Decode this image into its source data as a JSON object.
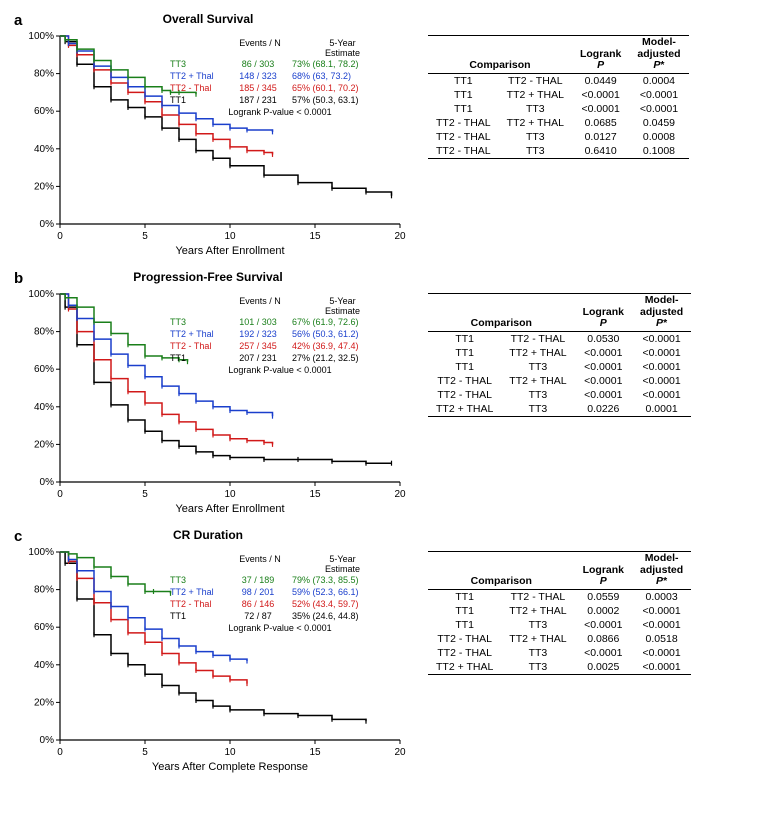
{
  "series_order": [
    "tt3",
    "tt2p",
    "tt2m",
    "tt1"
  ],
  "series": {
    "tt3": {
      "name": "TT3",
      "color": "#1a7f1a"
    },
    "tt2p": {
      "name": "TT2 + Thal",
      "color": "#1a3fcc"
    },
    "tt2m": {
      "name": "TT2 - Thal",
      "color": "#d11919"
    },
    "tt1": {
      "name": "TT1",
      "color": "#000000"
    }
  },
  "axis": {
    "x_ticks": [
      0,
      5,
      10,
      15,
      20
    ],
    "y_ticks": [
      0,
      20,
      40,
      60,
      80,
      100
    ]
  },
  "panels": [
    {
      "letter": "a",
      "title": "Overall Survival",
      "xlabel": "Years After Enrollment",
      "x_max": 20,
      "legend_header_ev": "Events / N",
      "legend_header_est": "5-Year\nEstimate",
      "legend": {
        "tt3": {
          "ev": "86 / 303",
          "est": "73% (68.1, 78.2)"
        },
        "tt2p": {
          "ev": "148 / 323",
          "est": "68% (63, 73.2)"
        },
        "tt2m": {
          "ev": "185 / 345",
          "est": "65% (60.1, 70.2)"
        },
        "tt1": {
          "ev": "187 / 231",
          "est": "57% (50.3, 63.1)"
        }
      },
      "logrank": "Logrank P-value < 0.0001",
      "curves": {
        "tt3": [
          [
            0,
            100
          ],
          [
            0.3,
            98
          ],
          [
            1,
            93
          ],
          [
            2,
            87
          ],
          [
            3,
            82
          ],
          [
            4,
            78
          ],
          [
            5,
            73
          ],
          [
            6,
            71
          ],
          [
            6.5,
            70
          ],
          [
            7,
            70
          ],
          [
            8,
            69
          ]
        ],
        "tt2p": [
          [
            0,
            100
          ],
          [
            0.5,
            96
          ],
          [
            1,
            92
          ],
          [
            2,
            84
          ],
          [
            3,
            78
          ],
          [
            4,
            73
          ],
          [
            5,
            68
          ],
          [
            6,
            63
          ],
          [
            7,
            59
          ],
          [
            8,
            56
          ],
          [
            9,
            53
          ],
          [
            10,
            51
          ],
          [
            11,
            50
          ],
          [
            12.5,
            49
          ]
        ],
        "tt2m": [
          [
            0,
            100
          ],
          [
            0.5,
            95
          ],
          [
            1,
            90
          ],
          [
            2,
            82
          ],
          [
            3,
            75
          ],
          [
            4,
            70
          ],
          [
            5,
            65
          ],
          [
            6,
            58
          ],
          [
            7,
            53
          ],
          [
            8,
            48
          ],
          [
            9,
            45
          ],
          [
            10,
            41
          ],
          [
            11,
            39
          ],
          [
            12,
            38
          ],
          [
            12.5,
            37
          ]
        ],
        "tt1": [
          [
            0,
            100
          ],
          [
            0.3,
            97
          ],
          [
            1,
            85
          ],
          [
            2,
            73
          ],
          [
            3,
            66
          ],
          [
            4,
            62
          ],
          [
            5,
            57
          ],
          [
            6,
            51
          ],
          [
            7,
            45
          ],
          [
            8,
            39
          ],
          [
            9,
            35
          ],
          [
            10,
            31
          ],
          [
            12,
            26
          ],
          [
            14,
            22
          ],
          [
            16,
            19
          ],
          [
            18,
            17
          ],
          [
            19.5,
            15
          ]
        ]
      },
      "table": {
        "headers": {
          "comp": "Comparison",
          "lr": "Logrank\nP",
          "ma": "Model-\nadjusted\nP*"
        },
        "rows": [
          [
            "TT1",
            "TT2 - THAL",
            "0.0449",
            "0.0004"
          ],
          [
            "TT1",
            "TT2 + THAL",
            "<0.0001",
            "<0.0001"
          ],
          [
            "TT1",
            "TT3",
            "<0.0001",
            "<0.0001"
          ],
          [
            "TT2 - THAL",
            "TT2 + THAL",
            "0.0685",
            "0.0459"
          ],
          [
            "TT2 - THAL",
            "TT3",
            "0.0127",
            "0.0008"
          ],
          [
            "TT2 - THAL",
            "TT3",
            "0.6410",
            "0.1008"
          ]
        ]
      }
    },
    {
      "letter": "b",
      "title": "Progression-Free Survival",
      "xlabel": "Years After Enrollment",
      "x_max": 20,
      "legend_header_ev": "Events / N",
      "legend_header_est": "5-Year\nEstimate",
      "legend": {
        "tt3": {
          "ev": "101 / 303",
          "est": "67% (61.9, 72.6)"
        },
        "tt2p": {
          "ev": "192 / 323",
          "est": "56% (50.3, 61.2)"
        },
        "tt2m": {
          "ev": "257 / 345",
          "est": "42% (36.9, 47.4)"
        },
        "tt1": {
          "ev": "207 / 231",
          "est": "27% (21.2, 32.5)"
        }
      },
      "logrank": "Logrank P-value < 0.0001",
      "curves": {
        "tt3": [
          [
            0,
            100
          ],
          [
            0.3,
            98
          ],
          [
            1,
            93
          ],
          [
            2,
            85
          ],
          [
            3,
            79
          ],
          [
            4,
            73
          ],
          [
            5,
            67
          ],
          [
            6,
            66
          ],
          [
            7,
            65
          ],
          [
            7.5,
            64
          ]
        ],
        "tt2p": [
          [
            0,
            100
          ],
          [
            0.5,
            94
          ],
          [
            1,
            87
          ],
          [
            2,
            76
          ],
          [
            3,
            68
          ],
          [
            4,
            62
          ],
          [
            5,
            56
          ],
          [
            6,
            51
          ],
          [
            7,
            47
          ],
          [
            8,
            43
          ],
          [
            9,
            40
          ],
          [
            10,
            38
          ],
          [
            11,
            37
          ],
          [
            12.5,
            35
          ]
        ],
        "tt2m": [
          [
            0,
            100
          ],
          [
            0.5,
            92
          ],
          [
            1,
            80
          ],
          [
            2,
            65
          ],
          [
            3,
            55
          ],
          [
            4,
            48
          ],
          [
            5,
            42
          ],
          [
            6,
            36
          ],
          [
            7,
            32
          ],
          [
            8,
            28
          ],
          [
            9,
            25
          ],
          [
            10,
            23
          ],
          [
            11,
            22
          ],
          [
            12,
            21
          ],
          [
            12.5,
            20
          ]
        ],
        "tt1": [
          [
            0,
            100
          ],
          [
            0.3,
            93
          ],
          [
            1,
            73
          ],
          [
            2,
            53
          ],
          [
            3,
            41
          ],
          [
            4,
            33
          ],
          [
            5,
            27
          ],
          [
            6,
            22
          ],
          [
            7,
            19
          ],
          [
            8,
            16
          ],
          [
            9,
            14
          ],
          [
            10,
            13
          ],
          [
            12,
            12
          ],
          [
            14,
            12
          ],
          [
            16,
            11
          ],
          [
            18,
            10
          ],
          [
            19.5,
            10
          ]
        ]
      },
      "table": {
        "headers": {
          "comp": "Comparison",
          "lr": "Logrank\nP",
          "ma": "Model-\nadjusted\nP*"
        },
        "rows": [
          [
            "TT1",
            "TT2 - THAL",
            "0.0530",
            "<0.0001"
          ],
          [
            "TT1",
            "TT2 + THAL",
            "<0.0001",
            "<0.0001"
          ],
          [
            "TT1",
            "TT3",
            "<0.0001",
            "<0.0001"
          ],
          [
            "TT2 - THAL",
            "TT2 + THAL",
            "<0.0001",
            "<0.0001"
          ],
          [
            "TT2 - THAL",
            "TT3",
            "<0.0001",
            "<0.0001"
          ],
          [
            "TT2 + THAL",
            "TT3",
            "0.0226",
            "0.0001"
          ]
        ]
      }
    },
    {
      "letter": "c",
      "title": "CR Duration",
      "xlabel": "Years After Complete Response",
      "x_max": 20,
      "legend_header_ev": "Events / N",
      "legend_header_est": "5-Year\nEstimate",
      "legend": {
        "tt3": {
          "ev": "37 / 189",
          "est": "79% (73.3, 85.5)"
        },
        "tt2p": {
          "ev": "98 / 201",
          "est": "59% (52.3, 66.1)"
        },
        "tt2m": {
          "ev": "86 / 146",
          "est": "52% (43.4, 59.7)"
        },
        "tt1": {
          "ev": "72 / 87",
          "est": "35% (24.6, 44.8)"
        }
      },
      "logrank": "Logrank P-value < 0.0001",
      "curves": {
        "tt3": [
          [
            0,
            100
          ],
          [
            0.5,
            99
          ],
          [
            1,
            97
          ],
          [
            2,
            92
          ],
          [
            3,
            87
          ],
          [
            4,
            83
          ],
          [
            5,
            79
          ],
          [
            5.5,
            79
          ],
          [
            6.5,
            78
          ]
        ],
        "tt2p": [
          [
            0,
            100
          ],
          [
            0.5,
            96
          ],
          [
            1,
            90
          ],
          [
            2,
            79
          ],
          [
            3,
            71
          ],
          [
            4,
            65
          ],
          [
            5,
            59
          ],
          [
            6,
            54
          ],
          [
            7,
            50
          ],
          [
            8,
            47
          ],
          [
            9,
            45
          ],
          [
            10,
            43
          ],
          [
            11,
            42
          ]
        ],
        "tt2m": [
          [
            0,
            100
          ],
          [
            0.5,
            95
          ],
          [
            1,
            86
          ],
          [
            2,
            73
          ],
          [
            3,
            64
          ],
          [
            4,
            57
          ],
          [
            5,
            52
          ],
          [
            6,
            46
          ],
          [
            7,
            41
          ],
          [
            8,
            37
          ],
          [
            9,
            34
          ],
          [
            10,
            32
          ],
          [
            11,
            30
          ]
        ],
        "tt1": [
          [
            0,
            100
          ],
          [
            0.3,
            94
          ],
          [
            1,
            75
          ],
          [
            2,
            56
          ],
          [
            3,
            46
          ],
          [
            4,
            40
          ],
          [
            5,
            35
          ],
          [
            6,
            29
          ],
          [
            7,
            25
          ],
          [
            8,
            21
          ],
          [
            9,
            18
          ],
          [
            10,
            16
          ],
          [
            12,
            14
          ],
          [
            14,
            13
          ],
          [
            16,
            11
          ],
          [
            18,
            10
          ]
        ]
      },
      "table": {
        "headers": {
          "comp": "Comparison",
          "lr": "Logrank\nP",
          "ma": "Model-\nadjusted\nP*"
        },
        "rows": [
          [
            "TT1",
            "TT2 - THAL",
            "0.0559",
            "0.0003"
          ],
          [
            "TT1",
            "TT2 + THAL",
            "0.0002",
            "<0.0001"
          ],
          [
            "TT1",
            "TT3",
            "<0.0001",
            "<0.0001"
          ],
          [
            "TT2 - THAL",
            "TT2 + THAL",
            "0.0866",
            "0.0518"
          ],
          [
            "TT2 - THAL",
            "TT3",
            "<0.0001",
            "<0.0001"
          ],
          [
            "TT2 + THAL",
            "TT3",
            "0.0025",
            "<0.0001"
          ]
        ]
      }
    }
  ]
}
